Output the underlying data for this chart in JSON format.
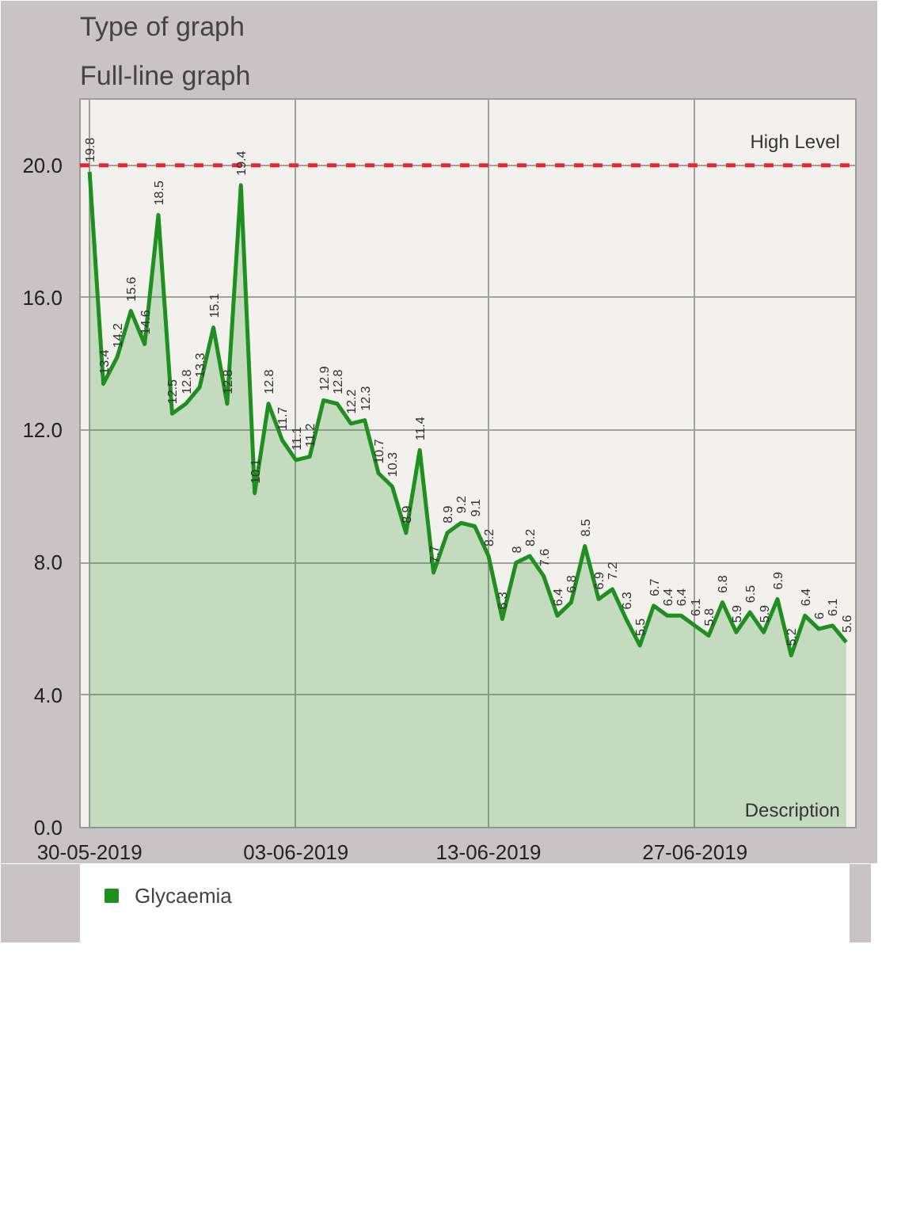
{
  "chart_data": {
    "type": "area",
    "annotations": [
      "Type of graph",
      "Full-line graph",
      "Description"
    ],
    "categories": [
      "30-05-2019",
      null,
      null,
      null,
      null,
      null,
      null,
      null,
      null,
      null,
      null,
      null,
      null,
      null,
      null,
      "03-06-2019",
      null,
      null,
      null,
      null,
      null,
      null,
      null,
      null,
      null,
      null,
      null,
      null,
      null,
      "13-06-2019",
      null,
      null,
      null,
      null,
      null,
      null,
      null,
      null,
      null,
      null,
      null,
      null,
      null,
      null,
      "27-06-2019",
      null,
      null,
      null,
      null,
      null,
      null,
      null,
      null,
      null,
      null,
      null
    ],
    "series": [
      {
        "name": "Glycaemia",
        "color": "#1f8f1f",
        "values": [
          19.8,
          13.4,
          14.2,
          15.6,
          14.6,
          18.5,
          12.5,
          12.8,
          13.3,
          15.1,
          12.8,
          19.4,
          10.1,
          12.8,
          11.7,
          11.1,
          11.2,
          12.9,
          12.8,
          12.2,
          12.3,
          10.7,
          10.3,
          8.9,
          11.4,
          7.7,
          8.9,
          9.2,
          9.1,
          8.2,
          6.3,
          8.0,
          8.2,
          7.6,
          6.4,
          6.8,
          8.5,
          6.9,
          7.2,
          6.3,
          5.5,
          6.7,
          6.4,
          6.4,
          6.1,
          5.8,
          6.8,
          5.9,
          6.5,
          5.9,
          6.9,
          5.2,
          6.4,
          6.0,
          6.1,
          5.6
        ]
      }
    ],
    "value_labels": [
      "19.8",
      "13.4",
      "14.2",
      "15.6",
      "14.6",
      "18.5",
      "12.5",
      "12.8",
      "13.3",
      "15.1",
      "12.8",
      "19.4",
      "10.1",
      "12.8",
      "11.7",
      "11.1",
      "11.2",
      "12.9",
      "12.8",
      "12.2",
      "12.3",
      "10.7",
      "10.3",
      "8.9",
      "11.4",
      "7.7",
      "8.9",
      "9.2",
      "9.1",
      "8.2",
      "6.3",
      "8",
      "8.2",
      "7.6",
      "6.4",
      "6.8",
      "8.5",
      "6.9",
      "7.2",
      "6.3",
      "5.5",
      "6.7",
      "6.4",
      "6.4",
      "6.1",
      "5.8",
      "6.8",
      "5.9",
      "6.5",
      "5.9",
      "6.9",
      "5.2",
      "6.4",
      "6",
      "6.1",
      "5.6"
    ],
    "ylim": [
      0,
      22
    ],
    "yticks": [
      {
        "value": 0,
        "label": "0.0"
      },
      {
        "value": 4,
        "label": "4.0"
      },
      {
        "value": 8,
        "label": "8.0"
      },
      {
        "value": 12,
        "label": "12.0"
      },
      {
        "value": 16,
        "label": "16.0"
      },
      {
        "value": 20,
        "label": "20.0"
      }
    ],
    "ref_lines": [
      {
        "axis": "y",
        "value": 20,
        "label": "High Level",
        "color": "#e8262b",
        "line_style": "dashed"
      }
    ],
    "grid": true,
    "legend": "bottom left",
    "line_style": "solid",
    "marker": "none"
  }
}
